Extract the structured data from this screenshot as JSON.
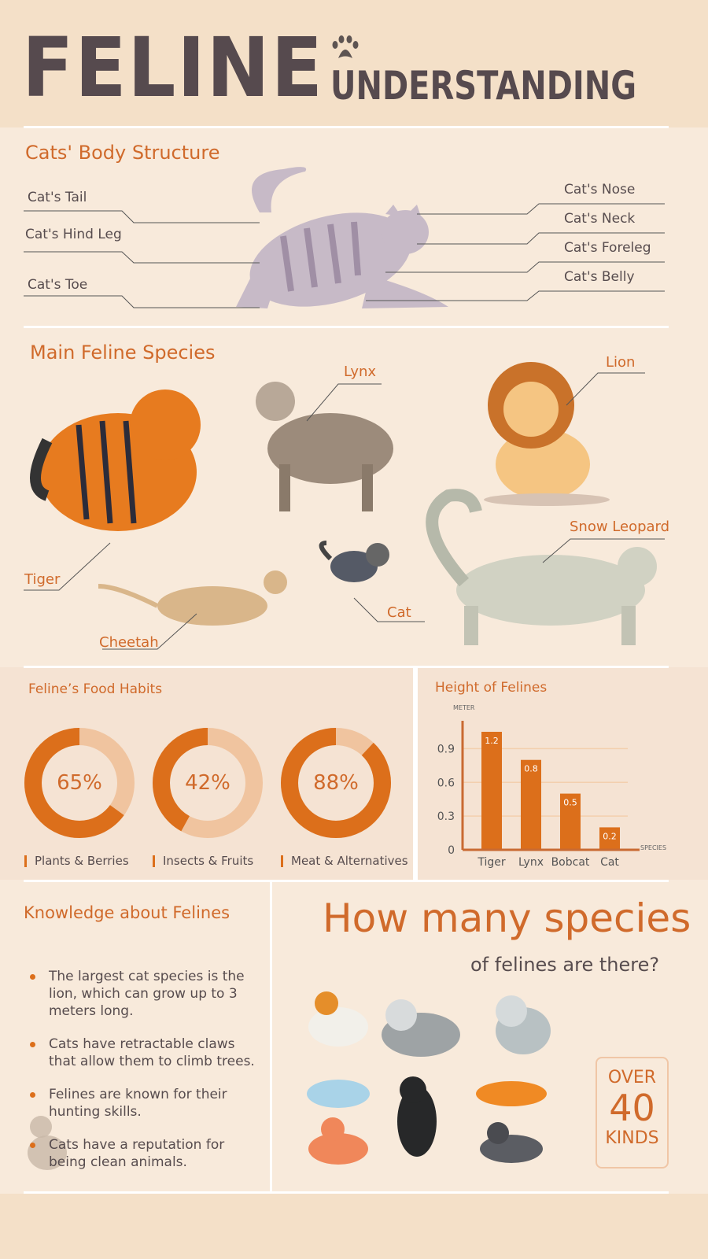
{
  "header": {
    "title": "FELINE",
    "subtitle": "UNDERSTANDING",
    "icon": "paw-icon"
  },
  "body_structure": {
    "title": "Cats' Body Structure",
    "left_labels": [
      "Cat's Tail",
      "Cat's Hind Leg",
      "Cat's Toe"
    ],
    "right_labels": [
      "Cat's Nose",
      "Cat's Neck",
      "Cat's Foreleg",
      "Cat's Belly"
    ]
  },
  "species": {
    "title": "Main Feline Species",
    "labels": {
      "lynx": "Lynx",
      "lion": "Lion",
      "snow_leopard": "Snow Leopard",
      "tiger": "Tiger",
      "cat": "Cat",
      "cheetah": "Cheetah"
    }
  },
  "food": {
    "title": "Feline’s Food Habits",
    "items": [
      {
        "percent": 65,
        "text": "65%",
        "label": "Plants & Berries"
      },
      {
        "percent": 42,
        "text": "42%",
        "label": "Insects & Fruits"
      },
      {
        "percent": 88,
        "text": "88%",
        "label": "Meat & Alternatives"
      }
    ],
    "colors": {
      "fill": "#dc6f1b",
      "track": "#f0c49f"
    }
  },
  "chart_data": {
    "type": "bar",
    "title": "Height of Felines",
    "ylabel": "METER",
    "xlabel": "SPECIES",
    "categories": [
      "Tiger",
      "Lynx",
      "Bobcat",
      "Cat"
    ],
    "values": [
      1.2,
      0.8,
      0.5,
      0.2
    ],
    "data_labels": [
      "1.2",
      "0.8",
      "0.5",
      "0.2"
    ],
    "yticks": [
      "0",
      "0.3",
      "0.6",
      "0.9"
    ],
    "ylim": [
      0,
      1.2
    ],
    "grid": true,
    "color": "#dc6f1b"
  },
  "knowledge": {
    "title": "Knowledge about Felines",
    "bullets": [
      "The largest cat species is the lion, which can grow up to 3 meters long.",
      "Cats have retractable claws that allow them to climb trees.",
      "Felines are known for their hunting skills.",
      "Cats have a reputation for being clean animals."
    ]
  },
  "count": {
    "title": "How many species",
    "subtitle": "of felines are there?",
    "box": {
      "top": "OVER",
      "number": "40",
      "bottom": "KINDS"
    }
  }
}
